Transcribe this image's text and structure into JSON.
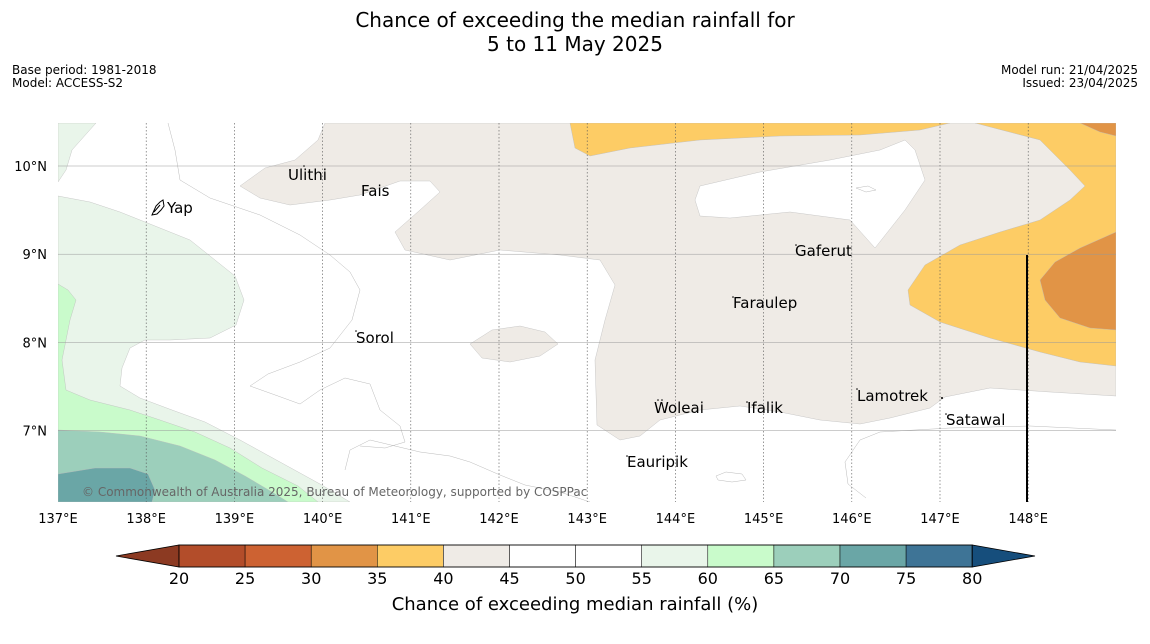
{
  "title": {
    "line1": "Chance of exceeding the median rainfall for",
    "line2": "5 to 11 May 2025"
  },
  "meta_left": {
    "base_period": "Base period: 1981-2018",
    "model": "Model: ACCESS-S2"
  },
  "meta_right": {
    "model_run": "Model run: 21/04/2025",
    "issued": "Issued: 23/04/2025"
  },
  "map": {
    "lon_labels": [
      "137°E",
      "138°E",
      "139°E",
      "140°E",
      "141°E",
      "142°E",
      "143°E",
      "144°E",
      "145°E",
      "146°E",
      "147°E",
      "148°E"
    ],
    "lat_labels": [
      "10°N",
      "9°N",
      "8°N",
      "7°N"
    ],
    "places": [
      "Yap",
      "Ulithi",
      "Fais",
      "Gaferut",
      "Faraulep",
      "Sorol",
      "Lamotrek",
      "Woleai",
      "Ifalik",
      "Satawal",
      "Eauripik"
    ],
    "copyright": "© Commonwealth of Australia 2025, Bureau of Meteorology, supported by COSPPac"
  },
  "colorbar": {
    "title": "Chance of exceeding median rainfall (%)",
    "ticks": [
      "20",
      "25",
      "30",
      "35",
      "40",
      "45",
      "50",
      "55",
      "60",
      "65",
      "70",
      "75",
      "80"
    ],
    "colors": {
      "below_20": "#8c3a22",
      "20_25": "#b34d2a",
      "25_30": "#cd6232",
      "30_35": "#e19446",
      "35_40": "#fdcc65",
      "40_45": "#efebe6",
      "45_50": "#ffffff",
      "50_55": "#ffffff",
      "55_60": "#e9f5ea",
      "60_65": "#c9fbcb",
      "65_70": "#9ccfbb",
      "70_75": "#6aa6a6",
      "75_80": "#3e7496",
      "above_80": "#164e7c"
    }
  }
}
